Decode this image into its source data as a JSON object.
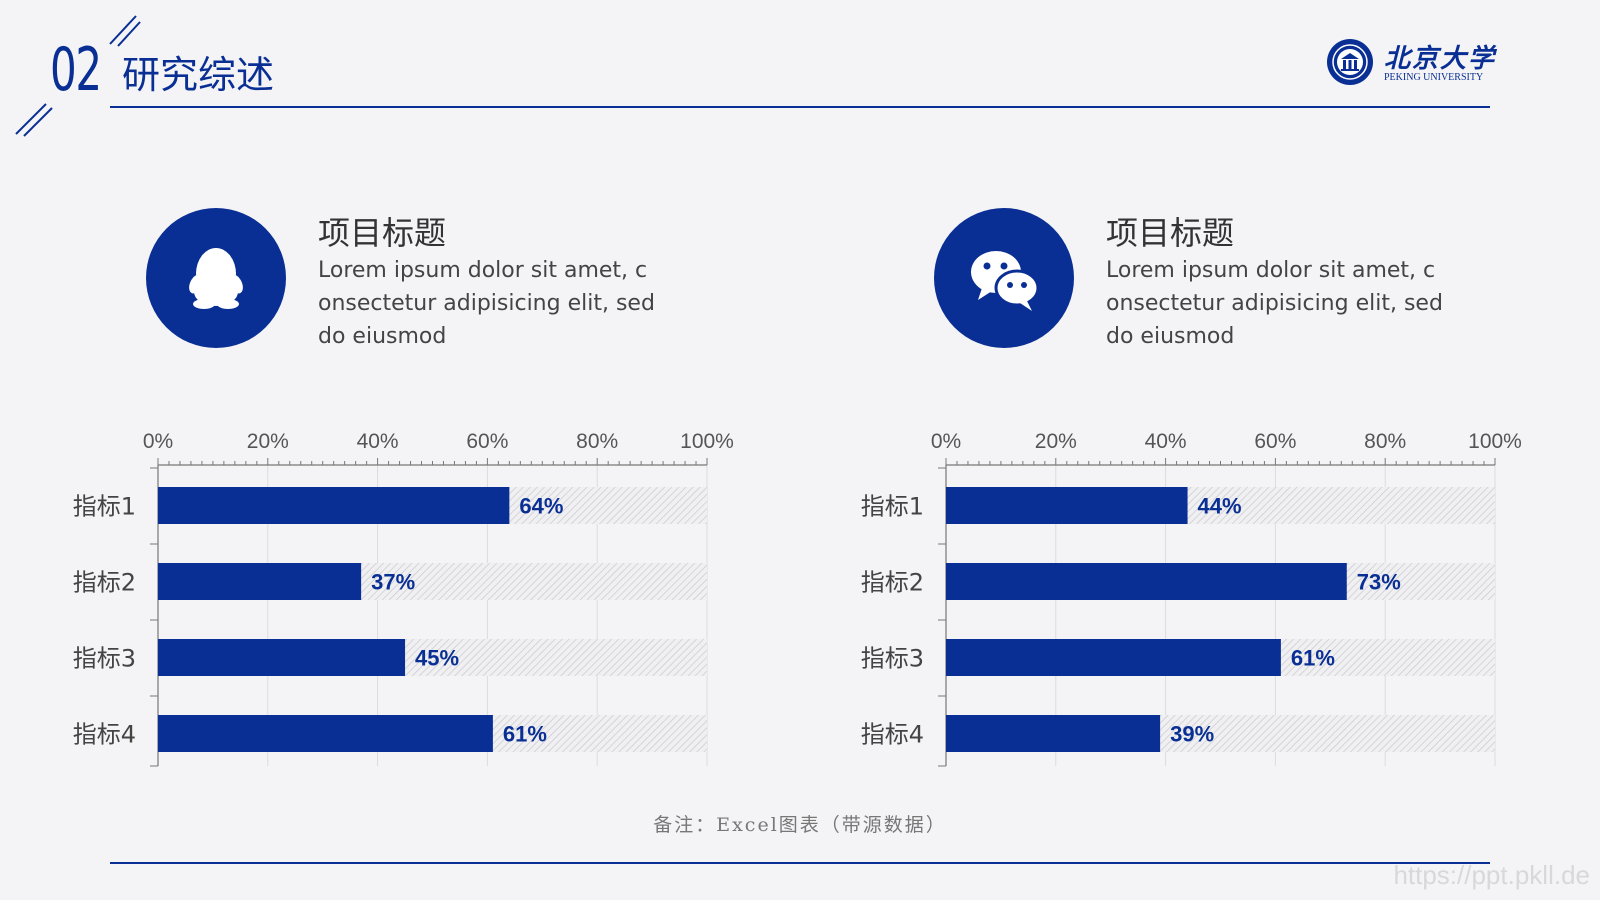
{
  "header": {
    "section_number": "02",
    "section_title": "研究综述",
    "logo_name": "北京大学",
    "logo_sub": "PEKING UNIVERSITY"
  },
  "cards": [
    {
      "icon": "qq-penguin-icon",
      "title": "项目标题",
      "text": "Lorem ipsum dolor sit amet, consectetur adipisicing elit, sed do eiusmod"
    },
    {
      "icon": "wechat-icon",
      "title": "项目标题",
      "text": "Lorem ipsum dolor sit amet, consectetur adipisicing elit, sed do eiusmod"
    }
  ],
  "note": "备注：Excel图表（带源数据）",
  "watermark": "https://ppt.pkll.de",
  "colors": {
    "accent": "#0a2f94",
    "track": "#e6e6e9",
    "text": "#444444"
  },
  "chart_data": [
    {
      "type": "bar",
      "orientation": "horizontal",
      "categories": [
        "指标1",
        "指标2",
        "指标3",
        "指标4"
      ],
      "values": [
        64,
        37,
        45,
        61
      ],
      "value_labels": [
        "64%",
        "37%",
        "45%",
        "61%"
      ],
      "xlim": [
        0,
        100
      ],
      "xticks": [
        "0%",
        "20%",
        "40%",
        "60%",
        "80%",
        "100%"
      ],
      "grid": true,
      "background_track": "hatched",
      "color": "#0a2f94"
    },
    {
      "type": "bar",
      "orientation": "horizontal",
      "categories": [
        "指标1",
        "指标2",
        "指标3",
        "指标4"
      ],
      "values": [
        44,
        73,
        61,
        39
      ],
      "value_labels": [
        "44%",
        "73%",
        "61%",
        "39%"
      ],
      "xlim": [
        0,
        100
      ],
      "xticks": [
        "0%",
        "20%",
        "40%",
        "60%",
        "80%",
        "100%"
      ],
      "grid": true,
      "background_track": "hatched",
      "color": "#0a2f94"
    }
  ]
}
